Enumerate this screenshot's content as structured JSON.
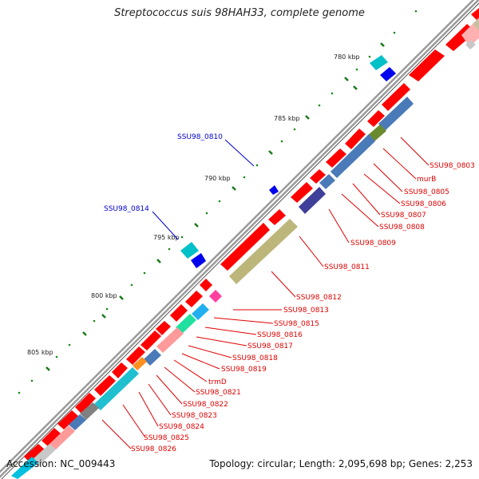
{
  "title": "Streptococcus suis 98HAH33, complete genome",
  "footer": {
    "accession": "Accession: NC_009443",
    "summary": "Topology: circular; Length: 2,095,698 bp; Genes: 2,253"
  },
  "colors": {
    "cds_red": "#ff0000",
    "tick_green": "#1a7a1a",
    "label_red": "#e00000",
    "label_blue": "#0000cc",
    "backbone": "#8c8c8c"
  },
  "scale_labels": [
    "780 kbp",
    "785 kbp",
    "790 kbp",
    "795 kbp",
    "800 kbp",
    "805 kbp"
  ],
  "red_labels": [
    "SSU98_0803",
    "murB",
    "SSU98_0805",
    "SSU98_0806",
    "SSU98_0807",
    "SSU98_0808",
    "SSU98_0809",
    "SSU98_0811",
    "SSU98_0812",
    "SSU98_0813",
    "SSU98_0815",
    "SSU98_0816",
    "SSU98_0817",
    "SSU98_0818",
    "SSU98_0819",
    "trmD",
    "SSU98_0821",
    "SSU98_0822",
    "SSU98_0823",
    "SSU98_0824",
    "SSU98_0825",
    "SSU98_0826"
  ],
  "blue_labels": [
    "SSU98_0810",
    "SSU98_0814"
  ]
}
